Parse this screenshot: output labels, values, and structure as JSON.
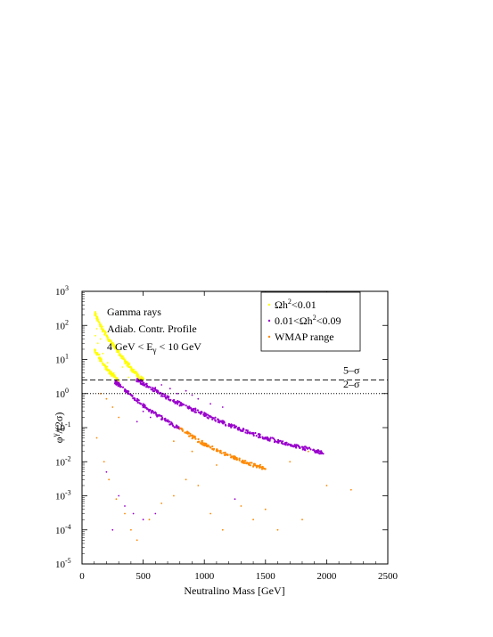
{
  "chart_data": {
    "type": "scatter",
    "xlabel": "Neutralino Mass  [GeV]",
    "ylabel_main": "φ",
    "ylabel_sup": "γ",
    "ylabel_tail": "/(2σ)",
    "xlim": [
      0,
      2500
    ],
    "ylim": [
      1e-05,
      1000
    ],
    "yscale": "log",
    "xticks": [
      0,
      500,
      1000,
      1500,
      2000,
      2500
    ],
    "yticks": [
      1e-05,
      0.0001,
      0.001,
      0.01,
      0.1,
      1,
      10,
      100,
      1000
    ],
    "ytick_labels": [
      {
        "base": "10",
        "exp": "-5"
      },
      {
        "base": "10",
        "exp": "-4"
      },
      {
        "base": "10",
        "exp": "-3"
      },
      {
        "base": "10",
        "exp": "-2"
      },
      {
        "base": "10",
        "exp": "-1"
      },
      {
        "base": "10",
        "exp": "0"
      },
      {
        "base": "10",
        "exp": "1"
      },
      {
        "base": "10",
        "exp": "2"
      },
      {
        "base": "10",
        "exp": "3"
      }
    ],
    "annotations": [
      "Gamma rays",
      "Adiab. Contr. Profile",
      "4 GeV < E",
      "γ",
      " < 10 GeV"
    ],
    "reference_lines": [
      {
        "label": "5–σ",
        "y": 2.5,
        "style": "dashed"
      },
      {
        "label": "2–σ",
        "y": 1.0,
        "style": "dotted"
      }
    ],
    "legend": {
      "placement": "top-right",
      "entries": [
        {
          "pre": "Ωh",
          "sup": "2",
          "post": "<0.01",
          "color": "#ffff00"
        },
        {
          "pre": "0.01<Ωh",
          "sup": "2",
          "post": "<0.09",
          "color": "#9900cc"
        },
        {
          "pre": "WMAP range",
          "sup": "",
          "post": "",
          "color": "#ff8800"
        }
      ]
    },
    "series": [
      {
        "color": "#ffff00",
        "bands": [
          {
            "x": [
              100,
              150,
              200,
              250,
              300,
              350,
              400,
              450,
              500
            ],
            "y": [
              250,
              100,
              50,
              28,
              16,
              9,
              5.5,
              3.5,
              2.5
            ]
          },
          {
            "x": [
              100,
              150,
              200,
              250,
              300
            ],
            "y": [
              20,
              10,
              5.5,
              3.5,
              2.2
            ]
          }
        ],
        "scatter": [
          [
            110,
            50
          ],
          [
            130,
            30
          ],
          [
            170,
            15
          ],
          [
            210,
            8
          ],
          [
            260,
            4
          ],
          [
            330,
            6
          ],
          [
            120,
            80
          ],
          [
            150,
            40
          ],
          [
            380,
            3
          ]
        ]
      },
      {
        "color": "#9900cc",
        "bands": [
          {
            "x": [
              450,
              500,
              600,
              700,
              800,
              900,
              1000,
              1100,
              1200,
              1300,
              1400,
              1500,
              1600,
              1700,
              1800,
              1900,
              1970
            ],
            "y": [
              2.5,
              2.0,
              1.2,
              0.75,
              0.5,
              0.35,
              0.24,
              0.17,
              0.12,
              0.09,
              0.065,
              0.05,
              0.04,
              0.032,
              0.026,
              0.021,
              0.018
            ]
          },
          {
            "x": [
              270,
              300,
              400,
              500,
              600,
              700,
              800
            ],
            "y": [
              2.2,
              1.8,
              0.9,
              0.45,
              0.25,
              0.15,
              0.09
            ]
          }
        ],
        "scatter": [
          [
            600,
            1.5
          ],
          [
            650,
            1.8
          ],
          [
            720,
            1.4
          ],
          [
            780,
            1.0
          ],
          [
            850,
            1.2
          ],
          [
            900,
            0.9
          ],
          [
            950,
            0.7
          ],
          [
            1050,
            0.5
          ],
          [
            1150,
            0.4
          ],
          [
            500,
            0.3
          ],
          [
            560,
            0.2
          ],
          [
            450,
            0.15
          ],
          [
            200,
            0.005
          ],
          [
            300,
            0.001
          ],
          [
            350,
            0.0005
          ],
          [
            420,
            0.0003
          ],
          [
            500,
            0.0002
          ],
          [
            600,
            0.0003
          ],
          [
            250,
            0.0001
          ],
          [
            1250,
            0.0008
          ]
        ]
      },
      {
        "color": "#ff8800",
        "bands": [
          {
            "x": [
              800,
              900,
              1000,
              1100,
              1200,
              1300,
              1400,
              1500
            ],
            "y": [
              0.1,
              0.055,
              0.033,
              0.022,
              0.015,
              0.011,
              0.008,
              0.0065
            ]
          }
        ],
        "scatter": [
          [
            150,
            1.0
          ],
          [
            200,
            0.7
          ],
          [
            250,
            0.4
          ],
          [
            300,
            0.2
          ],
          [
            120,
            0.05
          ],
          [
            180,
            0.01
          ],
          [
            220,
            0.003
          ],
          [
            280,
            0.0008
          ],
          [
            350,
            0.0003
          ],
          [
            400,
            0.0001
          ],
          [
            450,
            5e-05
          ],
          [
            550,
            0.0002
          ],
          [
            650,
            0.0006
          ],
          [
            750,
            0.001
          ],
          [
            850,
            0.003
          ],
          [
            950,
            0.002
          ],
          [
            1050,
            0.0003
          ],
          [
            1150,
            0.0001
          ],
          [
            1300,
            0.0005
          ],
          [
            1400,
            0.0002
          ],
          [
            1500,
            0.0004
          ],
          [
            1600,
            0.0001
          ],
          [
            1800,
            0.0002
          ],
          [
            2000,
            0.002
          ],
          [
            2200,
            0.0015
          ],
          [
            1700,
            0.01
          ],
          [
            1850,
            0.02
          ],
          [
            1100,
            0.008
          ],
          [
            900,
            0.02
          ],
          [
            750,
            0.04
          ]
        ]
      }
    ]
  }
}
